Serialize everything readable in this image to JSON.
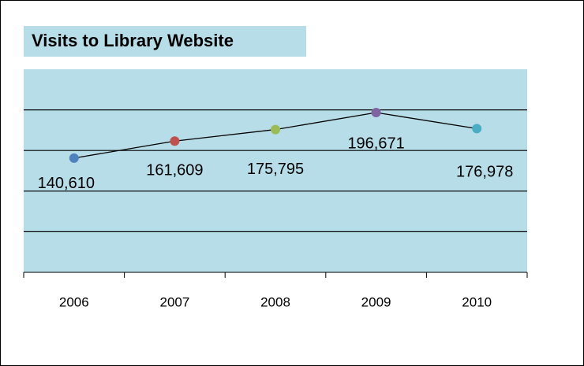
{
  "chart_data": {
    "type": "line",
    "title": "Visits to Library Website",
    "categories": [
      "2006",
      "2007",
      "2008",
      "2009",
      "2010"
    ],
    "values": [
      140610,
      161609,
      175795,
      196671,
      176978
    ],
    "value_labels": [
      "140,610",
      "161,609",
      "175,795",
      "196,671",
      "176,978"
    ],
    "colors": [
      "#4f81bd",
      "#c0504d",
      "#9bbb59",
      "#8064a2",
      "#4bacc6"
    ],
    "line_color": "#000000",
    "ylim": [
      0,
      250000
    ],
    "yticks": [
      50000,
      100000,
      150000,
      200000
    ],
    "grid": true
  }
}
